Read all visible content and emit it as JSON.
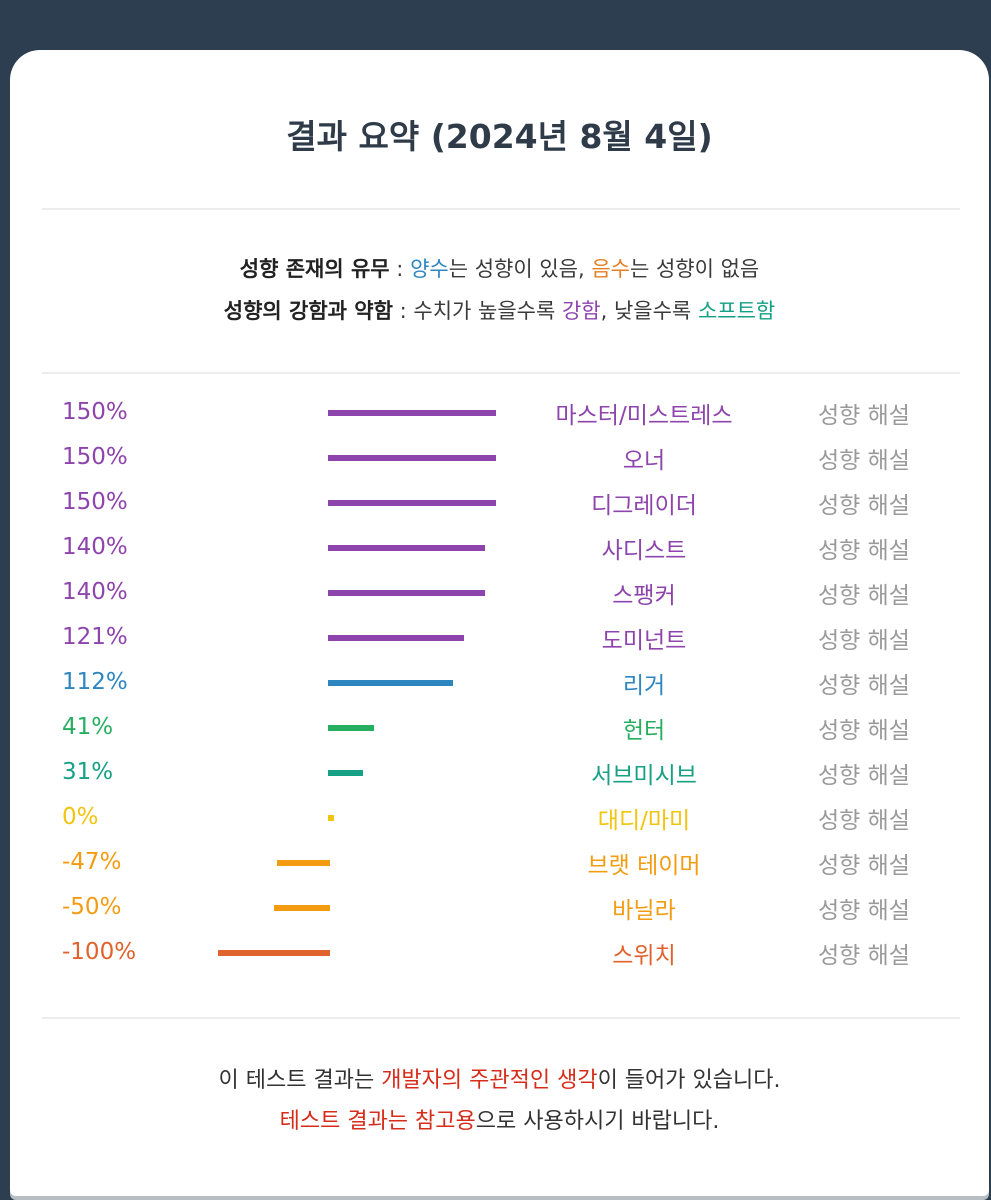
{
  "title": "결과 요약 (2024년 8월 4일)",
  "legend": {
    "line1": {
      "label": "성향 존재의 유무",
      "sep": " : ",
      "pos_word": "양수",
      "pos_text": "는 성향이 있음, ",
      "neg_word": "음수",
      "neg_text": "는 성향이 없음"
    },
    "line2": {
      "label": "성향의 강함과 약함",
      "sep": " : ",
      "text1": "수치가 높을수록 ",
      "strong_word": "강함",
      "text2": ", 낮을수록 ",
      "soft_word": "소프트함"
    }
  },
  "help_label": "성향 해설",
  "colors": {
    "purple": "#8e44ad",
    "blue": "#2e86c1",
    "green": "#27ae60",
    "teal": "#16a085",
    "yellow": "#f1c40f",
    "orange": "#f39c12",
    "deep_orange": "#e0622c"
  },
  "results": [
    {
      "pct": "150%",
      "value": 150,
      "name": "마스터/미스트레스",
      "color": "#8e44ad"
    },
    {
      "pct": "150%",
      "value": 150,
      "name": "오너",
      "color": "#8e44ad"
    },
    {
      "pct": "150%",
      "value": 150,
      "name": "디그레이더",
      "color": "#8e44ad"
    },
    {
      "pct": "140%",
      "value": 140,
      "name": "사디스트",
      "color": "#8e44ad"
    },
    {
      "pct": "140%",
      "value": 140,
      "name": "스팽커",
      "color": "#8e44ad"
    },
    {
      "pct": "121%",
      "value": 121,
      "name": "도미넌트",
      "color": "#8e44ad"
    },
    {
      "pct": "112%",
      "value": 112,
      "name": "리거",
      "color": "#2e86c1"
    },
    {
      "pct": "41%",
      "value": 41,
      "name": "헌터",
      "color": "#27ae60"
    },
    {
      "pct": "31%",
      "value": 31,
      "name": "서브미시브",
      "color": "#16a085"
    },
    {
      "pct": "0%",
      "value": 0,
      "name": "대디/마미",
      "color": "#f1c40f"
    },
    {
      "pct": "-47%",
      "value": -47,
      "name": "브랫 테이머",
      "color": "#f39c12"
    },
    {
      "pct": "-50%",
      "value": -50,
      "name": "바닐라",
      "color": "#f39c12"
    },
    {
      "pct": "-100%",
      "value": -100,
      "name": "스위치",
      "color": "#e0622c"
    }
  ],
  "footer": {
    "line1": {
      "text1": "이 테스트 결과는 ",
      "red": "개발자의 주관적인 생각",
      "text2": "이 들어가 있습니다."
    },
    "line2": {
      "red": "테스트 결과는 참고용",
      "text": "으로 사용하시기 바랍니다."
    }
  }
}
